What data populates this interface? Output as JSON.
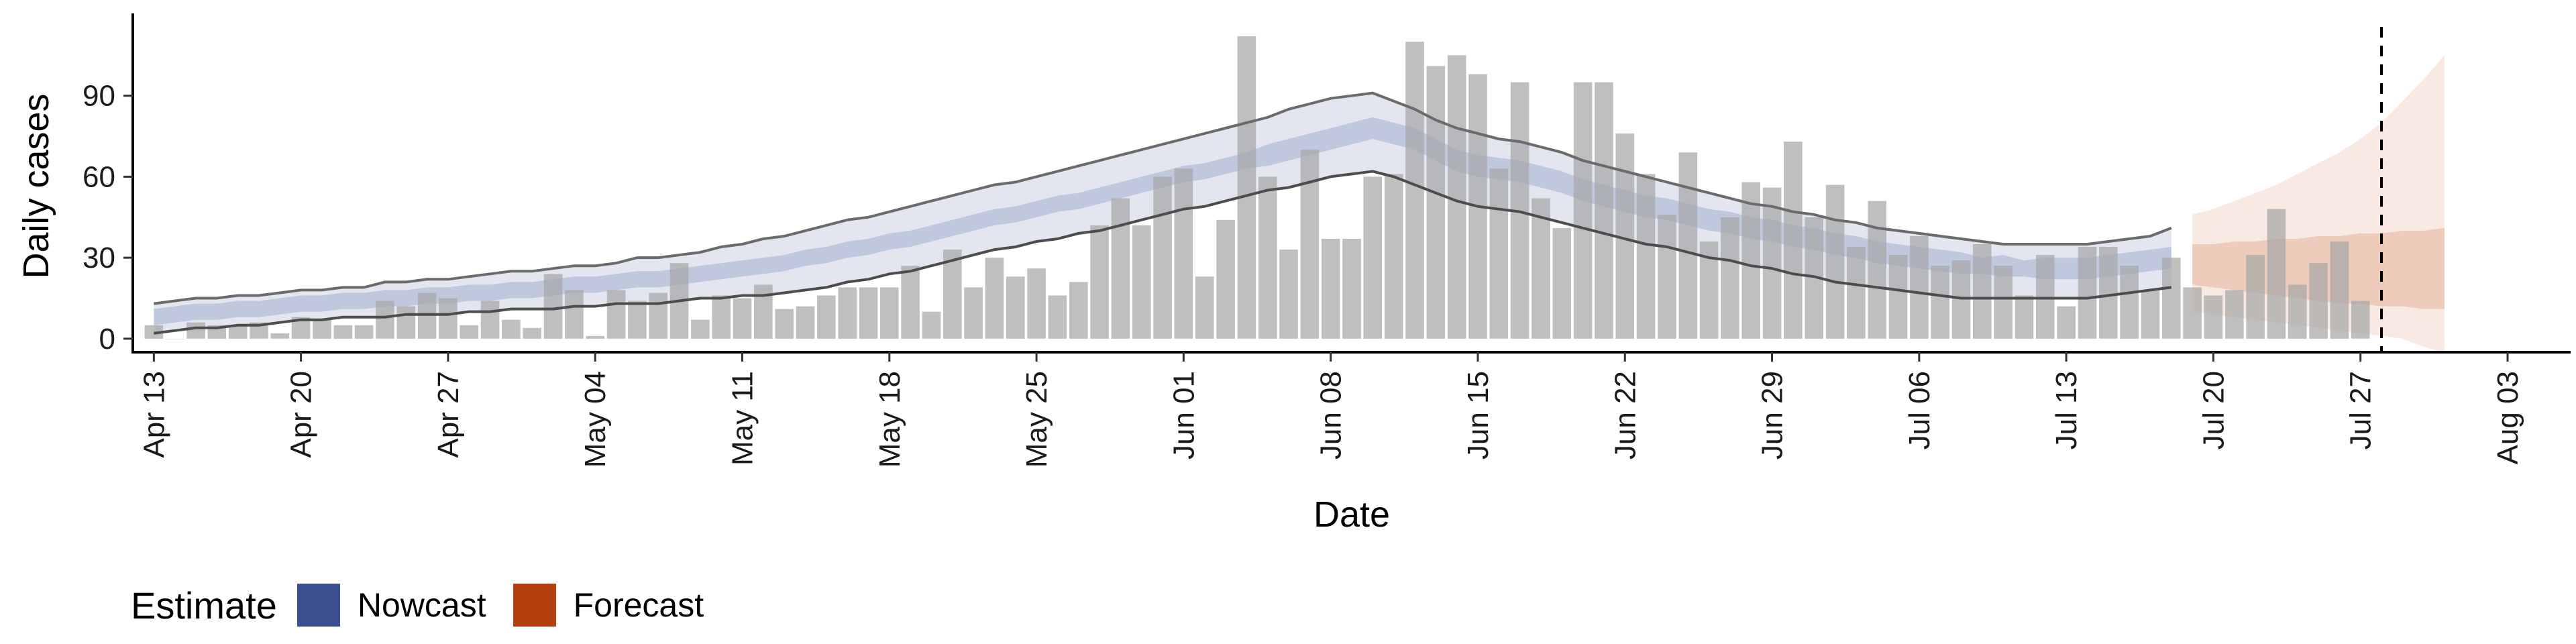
{
  "chart_data": {
    "type": "bar",
    "xlabel": "Date",
    "ylabel": "Daily cases",
    "yticks": [
      0,
      30,
      60,
      90
    ],
    "ylim": [
      -5,
      118
    ],
    "x_start_date": "2020-04-12",
    "x_end_date": "2020-08-06",
    "xticks": [
      {
        "date": "2020-04-13",
        "label": "Apr 13"
      },
      {
        "date": "2020-04-20",
        "label": "Apr 20"
      },
      {
        "date": "2020-04-27",
        "label": "Apr 27"
      },
      {
        "date": "2020-05-04",
        "label": "May 04"
      },
      {
        "date": "2020-05-11",
        "label": "May 11"
      },
      {
        "date": "2020-05-18",
        "label": "May 18"
      },
      {
        "date": "2020-05-25",
        "label": "May 25"
      },
      {
        "date": "2020-06-01",
        "label": "Jun 01"
      },
      {
        "date": "2020-06-08",
        "label": "Jun 08"
      },
      {
        "date": "2020-06-15",
        "label": "Jun 15"
      },
      {
        "date": "2020-06-22",
        "label": "Jun 22"
      },
      {
        "date": "2020-06-29",
        "label": "Jun 29"
      },
      {
        "date": "2020-07-06",
        "label": "Jul 06"
      },
      {
        "date": "2020-07-13",
        "label": "Jul 13"
      },
      {
        "date": "2020-07-20",
        "label": "Jul 20"
      },
      {
        "date": "2020-07-27",
        "label": "Jul 27"
      },
      {
        "date": "2020-08-03",
        "label": "Aug 03"
      }
    ],
    "bars_start_date": "2020-04-13",
    "daily_cases": [
      5,
      0,
      6,
      5,
      5,
      6,
      2,
      8,
      7,
      5,
      5,
      14,
      12,
      17,
      15,
      5,
      14,
      7,
      4,
      24,
      18,
      1,
      18,
      14,
      17,
      28,
      7,
      16,
      15,
      20,
      11,
      12,
      16,
      19,
      19,
      19,
      27,
      10,
      33,
      19,
      30,
      23,
      26,
      16,
      21,
      42,
      52,
      42,
      60,
      63,
      23,
      44,
      112,
      60,
      33,
      70,
      37,
      37,
      60,
      61,
      110,
      101,
      105,
      98,
      63,
      95,
      52,
      41,
      95,
      95,
      76,
      61,
      46,
      69,
      36,
      45,
      58,
      56,
      73,
      45,
      57,
      34,
      51,
      31,
      38,
      27,
      29,
      35,
      27,
      16,
      31,
      12,
      34,
      34,
      27,
      18,
      30,
      19,
      16,
      18,
      31,
      48,
      20,
      28,
      36,
      14
    ],
    "vline_date": "2020-07-28",
    "estimate_legend_title": "Estimate",
    "series": [
      {
        "name": "Nowcast",
        "color": "#3a4f8f",
        "start_date": "2020-04-13",
        "median": [
          8,
          9,
          10,
          10,
          11,
          11,
          12,
          13,
          13,
          14,
          14,
          15,
          15,
          16,
          16,
          17,
          17,
          18,
          18,
          19,
          20,
          20,
          21,
          22,
          22,
          23,
          24,
          25,
          26,
          27,
          28,
          30,
          31,
          33,
          34,
          36,
          37,
          39,
          41,
          43,
          45,
          46,
          48,
          50,
          51,
          53,
          55,
          57,
          59,
          61,
          62,
          64,
          66,
          68,
          70,
          72,
          74,
          76,
          78,
          76,
          74,
          70,
          66,
          64,
          63,
          62,
          60,
          58,
          55,
          53,
          51,
          49,
          48,
          46,
          44,
          43,
          41,
          40,
          38,
          37,
          35,
          34,
          32,
          31,
          30,
          29,
          28,
          27,
          27,
          26,
          26,
          26,
          26,
          27,
          28,
          29,
          30
        ],
        "inner_low": [
          5,
          6,
          7,
          7,
          8,
          8,
          9,
          10,
          10,
          11,
          11,
          12,
          12,
          13,
          13,
          14,
          14,
          15,
          15,
          16,
          17,
          17,
          18,
          19,
          19,
          20,
          21,
          22,
          23,
          24,
          25,
          27,
          28,
          30,
          31,
          33,
          34,
          36,
          38,
          40,
          42,
          43,
          45,
          47,
          48,
          50,
          52,
          54,
          56,
          58,
          59,
          61,
          63,
          64,
          66,
          68,
          70,
          72,
          74,
          72,
          70,
          66,
          62,
          60,
          59,
          58,
          56,
          54,
          51,
          49,
          47,
          45,
          44,
          42,
          40,
          39,
          37,
          36,
          34,
          33,
          31,
          30,
          28,
          27,
          26,
          25,
          24,
          24,
          23,
          23,
          22,
          22,
          22,
          23,
          24,
          25,
          26
        ],
        "inner_high": [
          11,
          12,
          13,
          13,
          14,
          14,
          15,
          16,
          16,
          17,
          17,
          18,
          18,
          19,
          19,
          20,
          20,
          21,
          21,
          22,
          23,
          23,
          24,
          25,
          25,
          26,
          27,
          28,
          29,
          30,
          31,
          33,
          34,
          36,
          37,
          39,
          40,
          42,
          44,
          46,
          48,
          49,
          51,
          53,
          54,
          56,
          58,
          60,
          62,
          64,
          65,
          67,
          69,
          72,
          74,
          76,
          78,
          80,
          82,
          80,
          78,
          74,
          70,
          68,
          67,
          66,
          64,
          62,
          59,
          57,
          55,
          53,
          52,
          50,
          48,
          47,
          45,
          44,
          42,
          41,
          39,
          38,
          36,
          35,
          34,
          33,
          32,
          30,
          31,
          29,
          30,
          30,
          30,
          31,
          32,
          33,
          34
        ],
        "outer_low": [
          2,
          3,
          4,
          4,
          5,
          5,
          6,
          7,
          7,
          8,
          8,
          8,
          9,
          9,
          9,
          10,
          10,
          11,
          11,
          11,
          12,
          12,
          13,
          13,
          13,
          14,
          15,
          15,
          16,
          16,
          17,
          18,
          19,
          21,
          22,
          24,
          25,
          27,
          29,
          31,
          33,
          34,
          36,
          37,
          39,
          40,
          42,
          44,
          46,
          48,
          49,
          51,
          53,
          55,
          56,
          58,
          60,
          61,
          62,
          60,
          57,
          54,
          51,
          49,
          48,
          47,
          45,
          43,
          41,
          39,
          37,
          35,
          34,
          32,
          30,
          29,
          27,
          26,
          24,
          23,
          21,
          20,
          19,
          18,
          17,
          16,
          15,
          15,
          15,
          15,
          15,
          15,
          15,
          16,
          17,
          18,
          19
        ],
        "outer_high": [
          13,
          14,
          15,
          15,
          16,
          16,
          17,
          18,
          18,
          19,
          19,
          21,
          21,
          22,
          22,
          23,
          24,
          25,
          25,
          26,
          27,
          27,
          28,
          30,
          30,
          31,
          32,
          34,
          35,
          37,
          38,
          40,
          42,
          44,
          45,
          47,
          49,
          51,
          53,
          55,
          57,
          58,
          60,
          62,
          64,
          66,
          68,
          70,
          72,
          74,
          76,
          78,
          80,
          82,
          85,
          87,
          89,
          90,
          91,
          88,
          85,
          81,
          78,
          76,
          74,
          73,
          71,
          69,
          66,
          64,
          62,
          60,
          58,
          56,
          54,
          52,
          50,
          49,
          47,
          46,
          44,
          43,
          41,
          40,
          39,
          38,
          37,
          36,
          35,
          35,
          35,
          35,
          35,
          36,
          37,
          38,
          41
        ]
      },
      {
        "name": "Forecast",
        "color": "#b5400f",
        "start_date": "2020-07-19",
        "median": [
          28,
          28,
          28,
          28,
          28,
          28,
          28,
          28,
          28,
          28,
          28,
          28,
          28
        ],
        "inner_low": [
          20,
          19,
          18,
          17,
          16,
          15,
          14,
          13,
          13,
          12,
          12,
          11,
          11
        ],
        "inner_high": [
          35,
          35,
          36,
          36,
          37,
          37,
          38,
          38,
          39,
          39,
          40,
          40,
          41
        ],
        "outer_low": [
          10,
          9,
          8,
          7,
          6,
          5,
          4,
          3,
          2,
          1,
          0,
          -3,
          -5
        ],
        "outer_high": [
          46,
          48,
          51,
          54,
          57,
          61,
          65,
          69,
          74,
          80,
          88,
          96,
          105
        ]
      }
    ]
  }
}
